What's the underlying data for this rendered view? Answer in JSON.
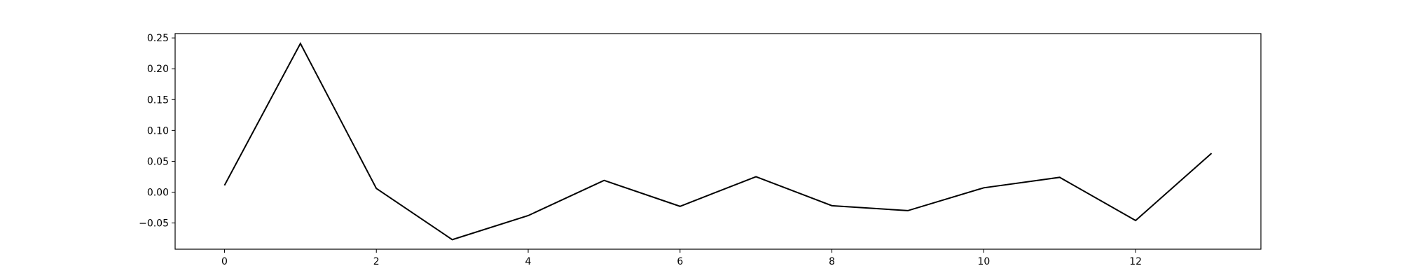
{
  "chart_data": {
    "type": "line",
    "title": "",
    "xlabel": "",
    "ylabel": "",
    "x": [
      0,
      1,
      2,
      3,
      4,
      5,
      6,
      7,
      8,
      9,
      10,
      11,
      12,
      13
    ],
    "series": [
      {
        "values": [
          0.011,
          0.241,
          0.006,
          -0.077,
          -0.038,
          0.019,
          -0.023,
          0.025,
          -0.022,
          -0.03,
          0.007,
          0.024,
          -0.046,
          0.063
        ]
      }
    ],
    "xlim": [
      -0.65,
      13.65
    ],
    "ylim": [
      -0.0925,
      0.257
    ],
    "xticks": [
      0,
      2,
      4,
      6,
      8,
      10,
      12
    ],
    "yticks": [
      -0.05,
      0.0,
      0.05,
      0.1,
      0.15,
      0.2,
      0.25
    ],
    "xtick_labels": [
      "0",
      "2",
      "4",
      "6",
      "8",
      "10",
      "12"
    ],
    "ytick_labels": [
      "−0.05",
      "0.00",
      "0.05",
      "0.10",
      "0.15",
      "0.20",
      "0.25"
    ],
    "line_color": "#000000",
    "grid": false,
    "legend": false
  }
}
